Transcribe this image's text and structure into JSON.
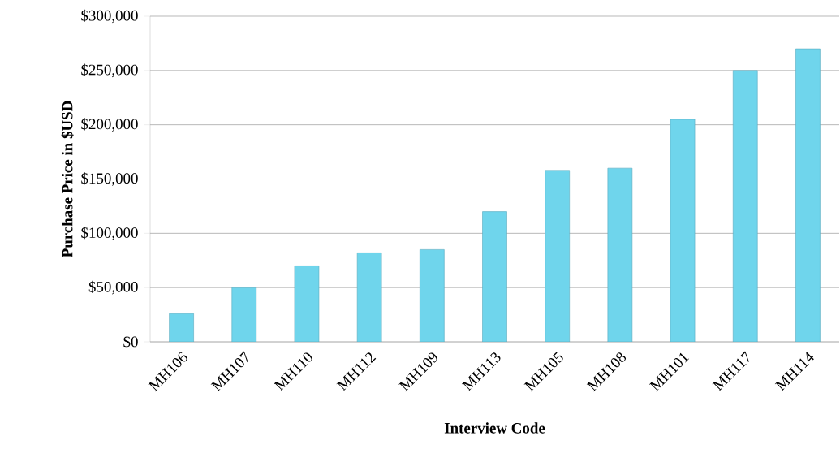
{
  "chart_data": {
    "type": "bar",
    "xlabel": "Interview Code",
    "ylabel": "Purchase Price in $USD",
    "categories": [
      "MH106",
      "MH107",
      "MH110",
      "MH112",
      "MH109",
      "MH113",
      "MH105",
      "MH108",
      "MH101",
      "MH117",
      "MH114"
    ],
    "values": [
      26000,
      50000,
      70000,
      82000,
      85000,
      120000,
      158000,
      160000,
      205000,
      250000,
      270000
    ],
    "color": "#6fd5ec",
    "ylim": [
      0,
      300000
    ],
    "yticks": [
      {
        "value": 0,
        "label": "$0"
      },
      {
        "value": 50000,
        "label": "$50,000"
      },
      {
        "value": 100000,
        "label": "$100,000"
      },
      {
        "value": 150000,
        "label": "$150,000"
      },
      {
        "value": 200000,
        "label": "$200,000"
      },
      {
        "value": 250000,
        "label": "$250,000"
      },
      {
        "value": 300000,
        "label": "$300,000"
      }
    ],
    "grid": "y"
  }
}
